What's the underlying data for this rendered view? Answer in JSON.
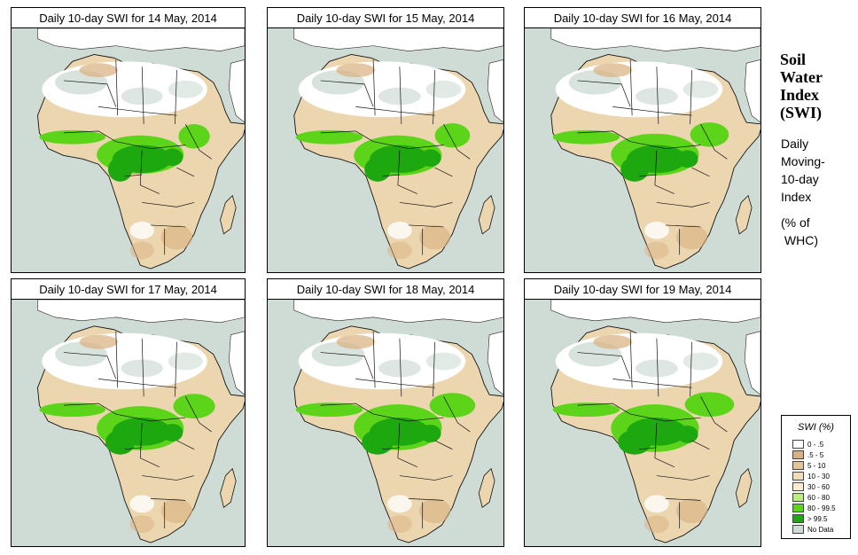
{
  "panels": [
    {
      "title": "Daily 10-day SWI for  14 May, 2014"
    },
    {
      "title": "Daily 10-day SWI for  15 May, 2014"
    },
    {
      "title": "Daily 10-day SWI for  16 May, 2014"
    },
    {
      "title": "Daily 10-day SWI for  17 May, 2014"
    },
    {
      "title": "Daily 10-day SWI for  18 May, 2014"
    },
    {
      "title": "Daily 10-day SWI for  19 May, 2014"
    }
  ],
  "side_panel": {
    "title_lines": [
      "Soil",
      "Water",
      "Index",
      "(SWI)"
    ],
    "description_lines": [
      "Daily",
      "Moving-",
      "10-day",
      "Index"
    ],
    "units_lines": [
      "(% of",
      " WHC)"
    ]
  },
  "legend": {
    "title": "SWI (%)",
    "items": [
      {
        "label": "0 - .5",
        "color": "#ffffff"
      },
      {
        "label": ".5 - 5",
        "color": "#d9b17f"
      },
      {
        "label": "5 - 10",
        "color": "#e6c49a"
      },
      {
        "label": "10 - 30",
        "color": "#f0dcb8"
      },
      {
        "label": "30 - 60",
        "color": "#f7ecd2"
      },
      {
        "label": "60 - 80",
        "color": "#b8ee7a"
      },
      {
        "label": "80 - 99.5",
        "color": "#5cd41a"
      },
      {
        "label": "> 99.5",
        "color": "#1ea810"
      },
      {
        "label": "No Data",
        "color": "#cfdcd6"
      }
    ]
  },
  "colors": {
    "ocean": "#cfdcd6",
    "desert": "#ffffff",
    "dry": "#ecd6b0",
    "very_dry": "#d9b17f",
    "moist": "#5cd41a",
    "wet": "#1ea810",
    "nodata": "#cfdcd6"
  }
}
